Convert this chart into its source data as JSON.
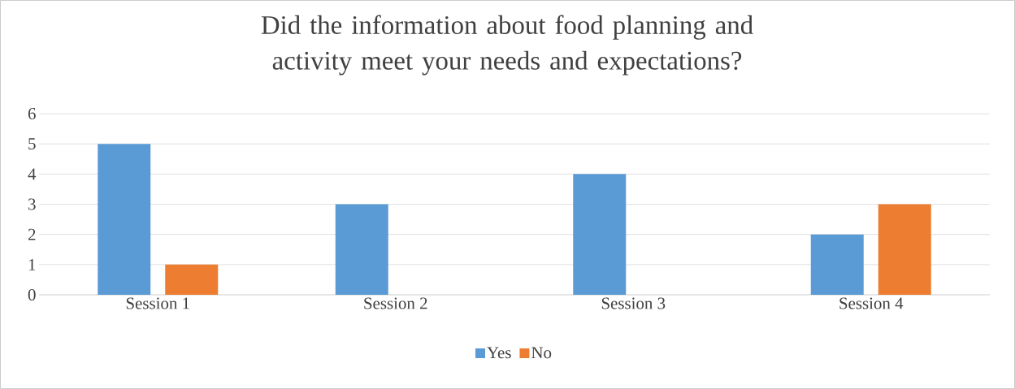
{
  "chart_data": {
    "type": "bar",
    "title": "Did the information about food planning and activity meet your needs and expectations?",
    "categories": [
      "Session 1",
      "Session 2",
      "Session 3",
      "Session 4"
    ],
    "series": [
      {
        "name": "Yes",
        "color": "#5b9bd5",
        "values": [
          5,
          3,
          4,
          2
        ]
      },
      {
        "name": "No",
        "color": "#ed7d31",
        "values": [
          1,
          0,
          0,
          3
        ]
      }
    ],
    "ylim": [
      0,
      6
    ],
    "yticks": [
      0,
      1,
      2,
      3,
      4,
      5,
      6
    ],
    "grid": "y",
    "legend": "bottom"
  }
}
